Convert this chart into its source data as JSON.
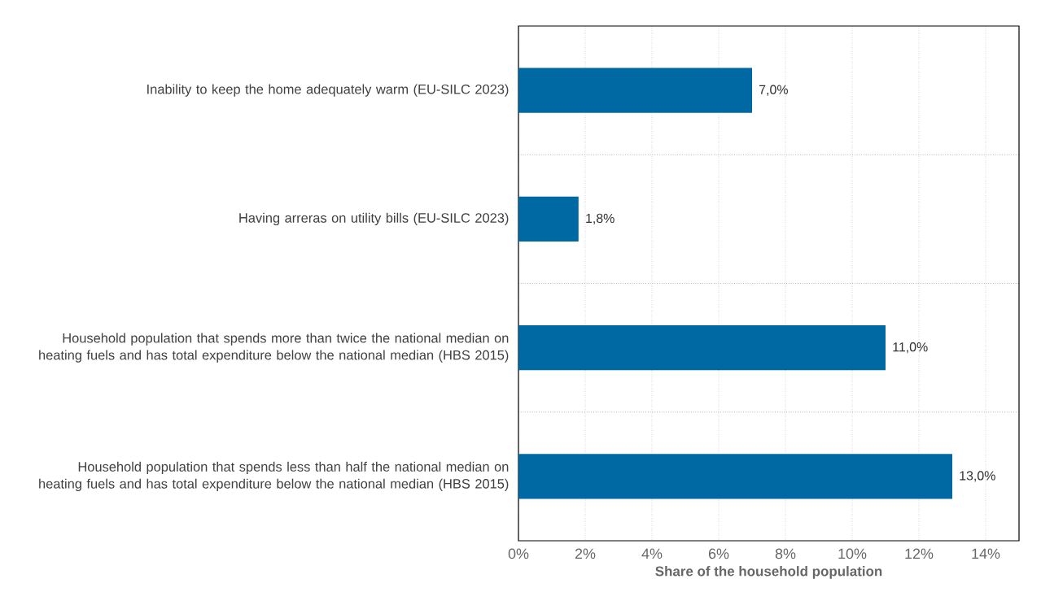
{
  "chart_data": {
    "type": "bar",
    "orientation": "horizontal",
    "xlabel": "Share of the household population",
    "categories": [
      "Inability to keep the home adequately warm (EU-SILC 2023)",
      "Having arreras on utility bills (EU-SILC 2023)",
      "Household population that spends more than twice the national median on heating fuels and has total expenditure below the national median (HBS 2015)",
      "Household population that spends less than half the national median on heating fuels and has total expenditure below the national median (HBS 2015)"
    ],
    "values": [
      7.0,
      1.8,
      11.0,
      13.0
    ],
    "value_labels": [
      "7,0%",
      "1,8%",
      "11,0%",
      "13,0%"
    ],
    "color": "#0069a4",
    "xlim": [
      0,
      15
    ],
    "xticks": [
      {
        "value": 0,
        "label": "0%"
      },
      {
        "value": 2,
        "label": "2%"
      },
      {
        "value": 4,
        "label": "4%"
      },
      {
        "value": 6,
        "label": "6%"
      },
      {
        "value": 8,
        "label": "8%"
      },
      {
        "value": 10,
        "label": "10%"
      },
      {
        "value": 12,
        "label": "12%"
      },
      {
        "value": 14,
        "label": "14%"
      }
    ],
    "grid": true
  }
}
